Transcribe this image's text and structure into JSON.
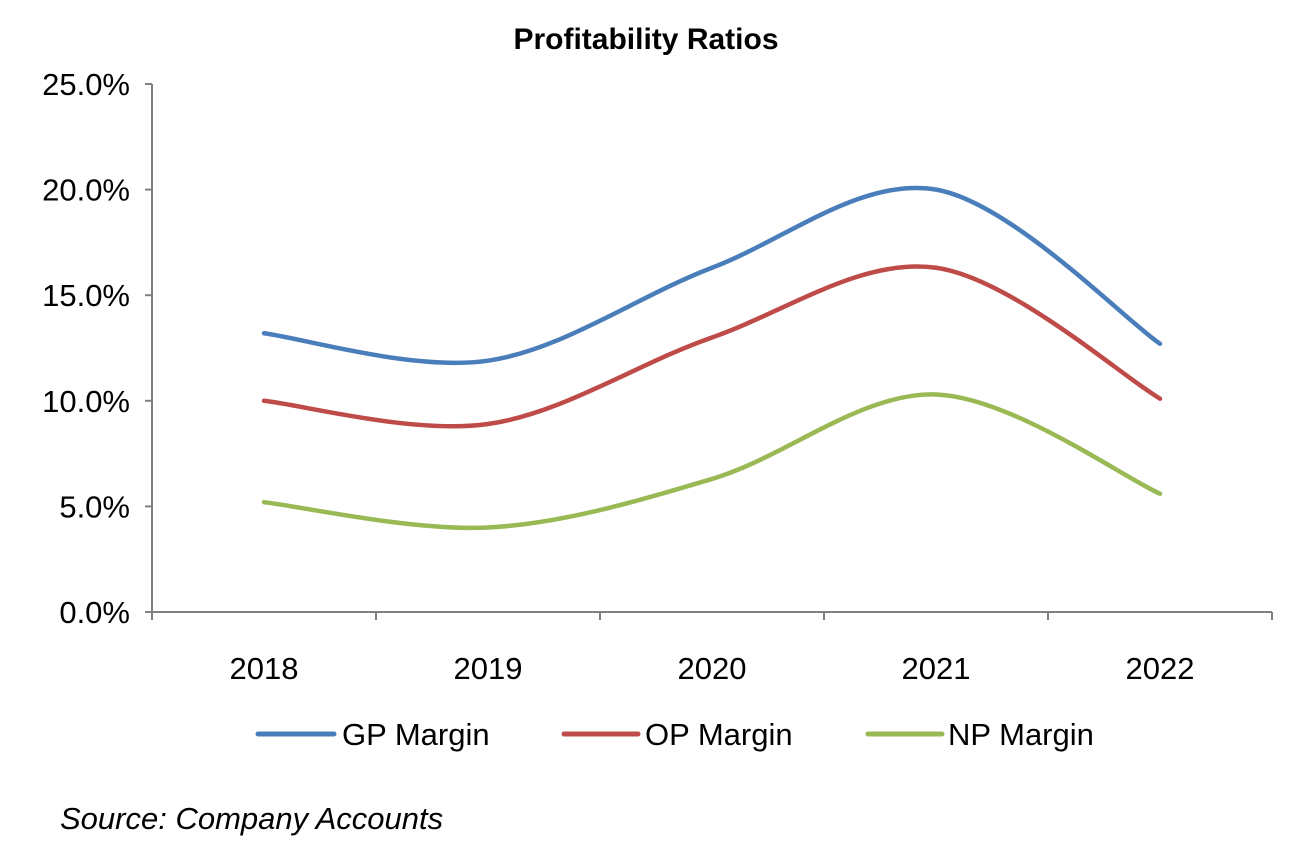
{
  "chart_data": {
    "type": "line",
    "title": "Profitability Ratios",
    "categories": [
      "2018",
      "2019",
      "2020",
      "2021",
      "2022"
    ],
    "series": [
      {
        "name": "GP Margin",
        "color": "#4a7ebb",
        "values": [
          13.2,
          11.9,
          16.3,
          20.0,
          12.7
        ]
      },
      {
        "name": "OP Margin",
        "color": "#be4b48",
        "values": [
          10.0,
          8.9,
          13.0,
          16.3,
          10.1
        ]
      },
      {
        "name": "NP Margin",
        "color": "#98b954",
        "values": [
          5.2,
          4.0,
          6.3,
          10.3,
          5.6
        ]
      }
    ],
    "y_ticks": [
      "0.0%",
      "5.0%",
      "10.0%",
      "15.0%",
      "20.0%",
      "25.0%"
    ],
    "ylim": [
      0,
      25
    ],
    "xlabel": "",
    "ylabel": "",
    "grid": false,
    "legend_position": "bottom",
    "smooth": true
  },
  "source_note": "Source: Company Accounts"
}
